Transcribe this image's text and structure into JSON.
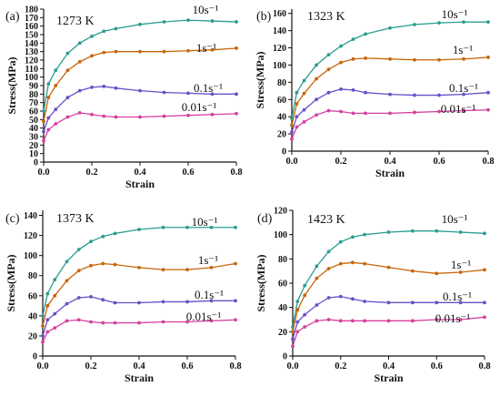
{
  "chart_data": [
    {
      "type": "line",
      "panel_label": "(a)",
      "temperature_label": "1273 K",
      "xlabel": "Strain",
      "ylabel": "Stress(MPa)",
      "xlim": [
        0,
        0.8
      ],
      "ylim": [
        0,
        180
      ],
      "xticks": [
        "0.0",
        "0.2",
        "0.4",
        "0.6",
        "0.8"
      ],
      "yticks": [
        "0",
        "10",
        "20",
        "30",
        "40",
        "50",
        "60",
        "70",
        "80",
        "90",
        "100",
        "110",
        "120",
        "130",
        "140",
        "150",
        "160",
        "170",
        "180"
      ],
      "x": [
        0,
        0.02,
        0.05,
        0.1,
        0.15,
        0.2,
        0.25,
        0.3,
        0.4,
        0.5,
        0.6,
        0.7,
        0.8
      ],
      "series": [
        {
          "name": "10s⁻¹",
          "values": [
            60,
            92,
            108,
            128,
            140,
            148,
            154,
            157,
            162,
            165,
            167,
            166,
            165
          ],
          "color": "#2a9d8f"
        },
        {
          "name": "1s⁻¹",
          "values": [
            48,
            76,
            90,
            108,
            118,
            125,
            129,
            130,
            130,
            130,
            131,
            132,
            134
          ],
          "color": "#c8660a"
        },
        {
          "name": "0.1s⁻¹",
          "values": [
            36,
            52,
            62,
            76,
            84,
            88,
            89,
            87,
            84,
            82,
            81,
            80,
            80
          ],
          "color": "#6a4fc8"
        },
        {
          "name": "0.01s⁻¹",
          "values": [
            25,
            38,
            45,
            53,
            58,
            56,
            54,
            53,
            53,
            54,
            55,
            56,
            57
          ],
          "color": "#d63fa0"
        }
      ]
    },
    {
      "type": "line",
      "panel_label": "(b)",
      "temperature_label": "1323 K",
      "xlabel": "Strain",
      "ylabel": "Stress(MPa)",
      "xlim": [
        0,
        0.8
      ],
      "ylim": [
        0,
        165
      ],
      "xticks": [
        "0.0",
        "0.2",
        "0.4",
        "0.6",
        "0.8"
      ],
      "yticks": [
        "0",
        "20",
        "40",
        "60",
        "80",
        "100",
        "120",
        "140",
        "160"
      ],
      "x": [
        0,
        0.02,
        0.05,
        0.1,
        0.15,
        0.2,
        0.25,
        0.3,
        0.4,
        0.5,
        0.6,
        0.7,
        0.8
      ],
      "series": [
        {
          "name": "10s⁻¹",
          "values": [
            38,
            68,
            82,
            100,
            112,
            122,
            130,
            136,
            143,
            147,
            149,
            150,
            150
          ],
          "color": "#2a9d8f"
        },
        {
          "name": "1s⁻¹",
          "values": [
            30,
            55,
            67,
            84,
            95,
            103,
            107,
            108,
            107,
            106,
            106,
            107,
            109
          ],
          "color": "#c8660a"
        },
        {
          "name": "0.1s⁻¹",
          "values": [
            22,
            40,
            48,
            60,
            68,
            72,
            71,
            68,
            66,
            65,
            65,
            66,
            68
          ],
          "color": "#6a4fc8"
        },
        {
          "name": "0.01s⁻¹",
          "values": [
            14,
            28,
            34,
            42,
            47,
            46,
            44,
            44,
            44,
            45,
            46,
            47,
            48
          ],
          "color": "#d63fa0"
        }
      ]
    },
    {
      "type": "line",
      "panel_label": "(c)",
      "temperature_label": "1373 K",
      "xlabel": "Strain",
      "ylabel": "Stress(MPa)",
      "xlim": [
        0,
        0.8
      ],
      "ylim": [
        0,
        145
      ],
      "xticks": [
        "0.0",
        "0.2",
        "0.4",
        "0.6",
        "0.8"
      ],
      "yticks": [
        "0",
        "20",
        "40",
        "60",
        "80",
        "100",
        "120",
        "140"
      ],
      "x": [
        0,
        0.02,
        0.05,
        0.1,
        0.15,
        0.2,
        0.25,
        0.3,
        0.4,
        0.5,
        0.6,
        0.7,
        0.8
      ],
      "series": [
        {
          "name": "10s⁻¹",
          "values": [
            40,
            62,
            76,
            94,
            106,
            114,
            119,
            122,
            126,
            128,
            128,
            128,
            128
          ],
          "color": "#2a9d8f"
        },
        {
          "name": "1s⁻¹",
          "values": [
            30,
            50,
            60,
            75,
            85,
            90,
            92,
            91,
            88,
            86,
            86,
            88,
            92
          ],
          "color": "#c8660a"
        },
        {
          "name": "0.1s⁻¹",
          "values": [
            20,
            36,
            42,
            52,
            58,
            59,
            56,
            53,
            53,
            54,
            54,
            55,
            55
          ],
          "color": "#6a4fc8"
        },
        {
          "name": "0.01s⁻¹",
          "values": [
            14,
            24,
            28,
            35,
            36,
            34,
            33,
            33,
            33,
            34,
            34,
            35,
            36
          ],
          "color": "#d63fa0"
        }
      ]
    },
    {
      "type": "line",
      "panel_label": "(d)",
      "temperature_label": "1423 K",
      "xlabel": "Strain",
      "ylabel": "Stress(MPa)",
      "xlim": [
        0,
        0.8
      ],
      "ylim": [
        0,
        120
      ],
      "xticks": [
        "0.0",
        "0.2",
        "0.4",
        "0.6",
        "0.8"
      ],
      "yticks": [
        "0",
        "20",
        "40",
        "60",
        "80",
        "100",
        "120"
      ],
      "x": [
        0,
        0.02,
        0.05,
        0.1,
        0.15,
        0.2,
        0.25,
        0.3,
        0.4,
        0.5,
        0.6,
        0.7,
        0.8
      ],
      "series": [
        {
          "name": "10s⁻¹",
          "values": [
            24,
            45,
            58,
            74,
            86,
            94,
            98,
            100,
            102,
            103,
            103,
            102,
            101
          ],
          "color": "#2a9d8f"
        },
        {
          "name": "1s⁻¹",
          "values": [
            20,
            38,
            50,
            64,
            72,
            76,
            77,
            76,
            73,
            70,
            68,
            69,
            71
          ],
          "color": "#c8660a"
        },
        {
          "name": "0.1s⁻¹",
          "values": [
            14,
            28,
            34,
            42,
            48,
            49,
            47,
            45,
            44,
            44,
            44,
            44,
            44
          ],
          "color": "#6a4fc8"
        },
        {
          "name": "0.01s⁻¹",
          "values": [
            8,
            20,
            24,
            29,
            30,
            29,
            29,
            29,
            29,
            29,
            30,
            30,
            32
          ],
          "color": "#d63fa0"
        }
      ]
    }
  ]
}
